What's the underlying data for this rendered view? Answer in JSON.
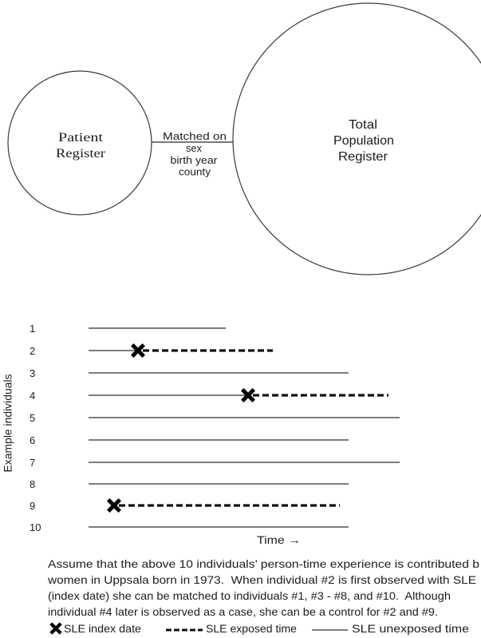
{
  "diagram": {
    "patient_register": {
      "lines": [
        "Patient",
        "Register"
      ]
    },
    "population_register": {
      "lines": [
        "Total",
        "Population",
        "Register"
      ]
    },
    "link": {
      "label": "Matched on",
      "criteria": [
        "sex",
        "birth year",
        "county"
      ]
    }
  },
  "timeline": {
    "y_axis_label": "Example individuals",
    "x_axis_label": "Time →",
    "rows": [
      {
        "label": "1",
        "index_date": false
      },
      {
        "label": "2",
        "index_date": true
      },
      {
        "label": "3",
        "index_date": false
      },
      {
        "label": "4",
        "index_date": true
      },
      {
        "label": "5",
        "index_date": false
      },
      {
        "label": "6",
        "index_date": false
      },
      {
        "label": "7",
        "index_date": false
      },
      {
        "label": "8",
        "index_date": false
      },
      {
        "label": "9",
        "index_date": true
      },
      {
        "label": "10",
        "index_date": false
      }
    ]
  },
  "caption": {
    "lines": [
      "Assume that the above 10 individuals’ person-time experience is contributed b",
      "women in Uppsala born in 1973.  When individual #2 is first observed with SLE",
      "(index date) she can be matched to individuals #1, #3 - #8, and #10.  Although",
      "individual #4 later is observed as a case, she can be a control for #2 and #9."
    ]
  },
  "legend": {
    "items": [
      {
        "label": "SLE index date",
        "icon": "x-mark-icon"
      },
      {
        "label": "SLE exposed time",
        "icon": "dashed-line-icon"
      },
      {
        "label": "SLE unexposed time",
        "icon": "solid-line-icon"
      }
    ]
  }
}
